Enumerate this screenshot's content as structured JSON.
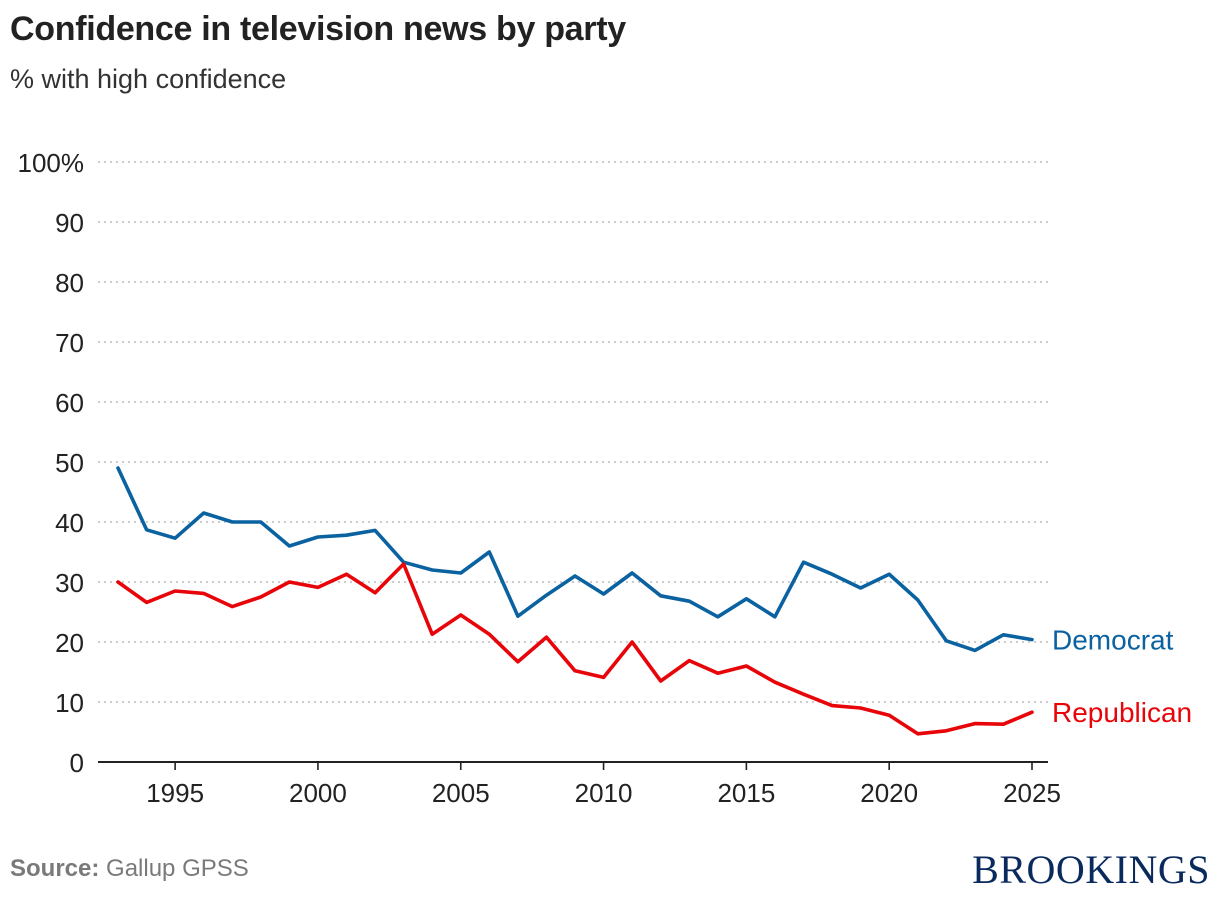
{
  "header": {
    "title": "Confidence in television news by party",
    "subtitle": "% with high confidence"
  },
  "footer": {
    "source_label": "Source:",
    "source_text": "Gallup GPSS",
    "logo": "BROOKINGS"
  },
  "colors": {
    "democrat": "#0a62a0",
    "republican": "#e8050a",
    "grid": "#bbbbbb",
    "axis": "#222222"
  },
  "chart_data": {
    "type": "line",
    "title": "Confidence in television news by party",
    "subtitle": "% with high confidence",
    "xlabel": "",
    "ylabel": "",
    "xlim": [
      1993,
      2025
    ],
    "ylim": [
      0,
      100
    ],
    "y_ticks": [
      0,
      10,
      20,
      30,
      40,
      50,
      60,
      70,
      80,
      90,
      100
    ],
    "y_tick_labels": [
      "0",
      "10",
      "20",
      "30",
      "40",
      "50",
      "60",
      "70",
      "80",
      "90",
      "100%"
    ],
    "x_ticks": [
      1995,
      2000,
      2005,
      2010,
      2015,
      2020,
      2025
    ],
    "x_tick_labels": [
      "1995",
      "2000",
      "2005",
      "2010",
      "2015",
      "2020",
      "2025"
    ],
    "grid": true,
    "legend": "direct labels at line ends",
    "x": [
      1993,
      1994,
      1995,
      1996,
      1997,
      1998,
      1999,
      2000,
      2001,
      2002,
      2003,
      2004,
      2005,
      2006,
      2007,
      2008,
      2009,
      2010,
      2011,
      2012,
      2013,
      2014,
      2015,
      2016,
      2017,
      2018,
      2019,
      2020,
      2021,
      2022,
      2023,
      2024,
      2025
    ],
    "series": [
      {
        "name": "Democrat",
        "color": "#0a62a0",
        "values": [
          49,
          38.7,
          37.3,
          41.5,
          40,
          40,
          36,
          37.5,
          37.8,
          38.6,
          33.3,
          32,
          31.5,
          35,
          24.3,
          27.8,
          31,
          28,
          31.5,
          27.7,
          26.8,
          24.2,
          27.2,
          24.2,
          33.3,
          31.3,
          29,
          31.3,
          27,
          20.2,
          18.6,
          21.2,
          20.4
        ]
      },
      {
        "name": "Republican",
        "color": "#e8050a",
        "values": [
          30,
          26.6,
          28.5,
          28.1,
          25.9,
          27.5,
          30,
          29.1,
          31.3,
          28.2,
          33,
          21.3,
          24.5,
          21.3,
          16.7,
          20.8,
          15.2,
          14.1,
          20,
          13.5,
          16.9,
          14.8,
          16,
          13.3,
          11.3,
          9.4,
          9,
          7.8,
          4.7,
          5.2,
          6.4,
          6.3,
          8.3
        ]
      }
    ]
  }
}
